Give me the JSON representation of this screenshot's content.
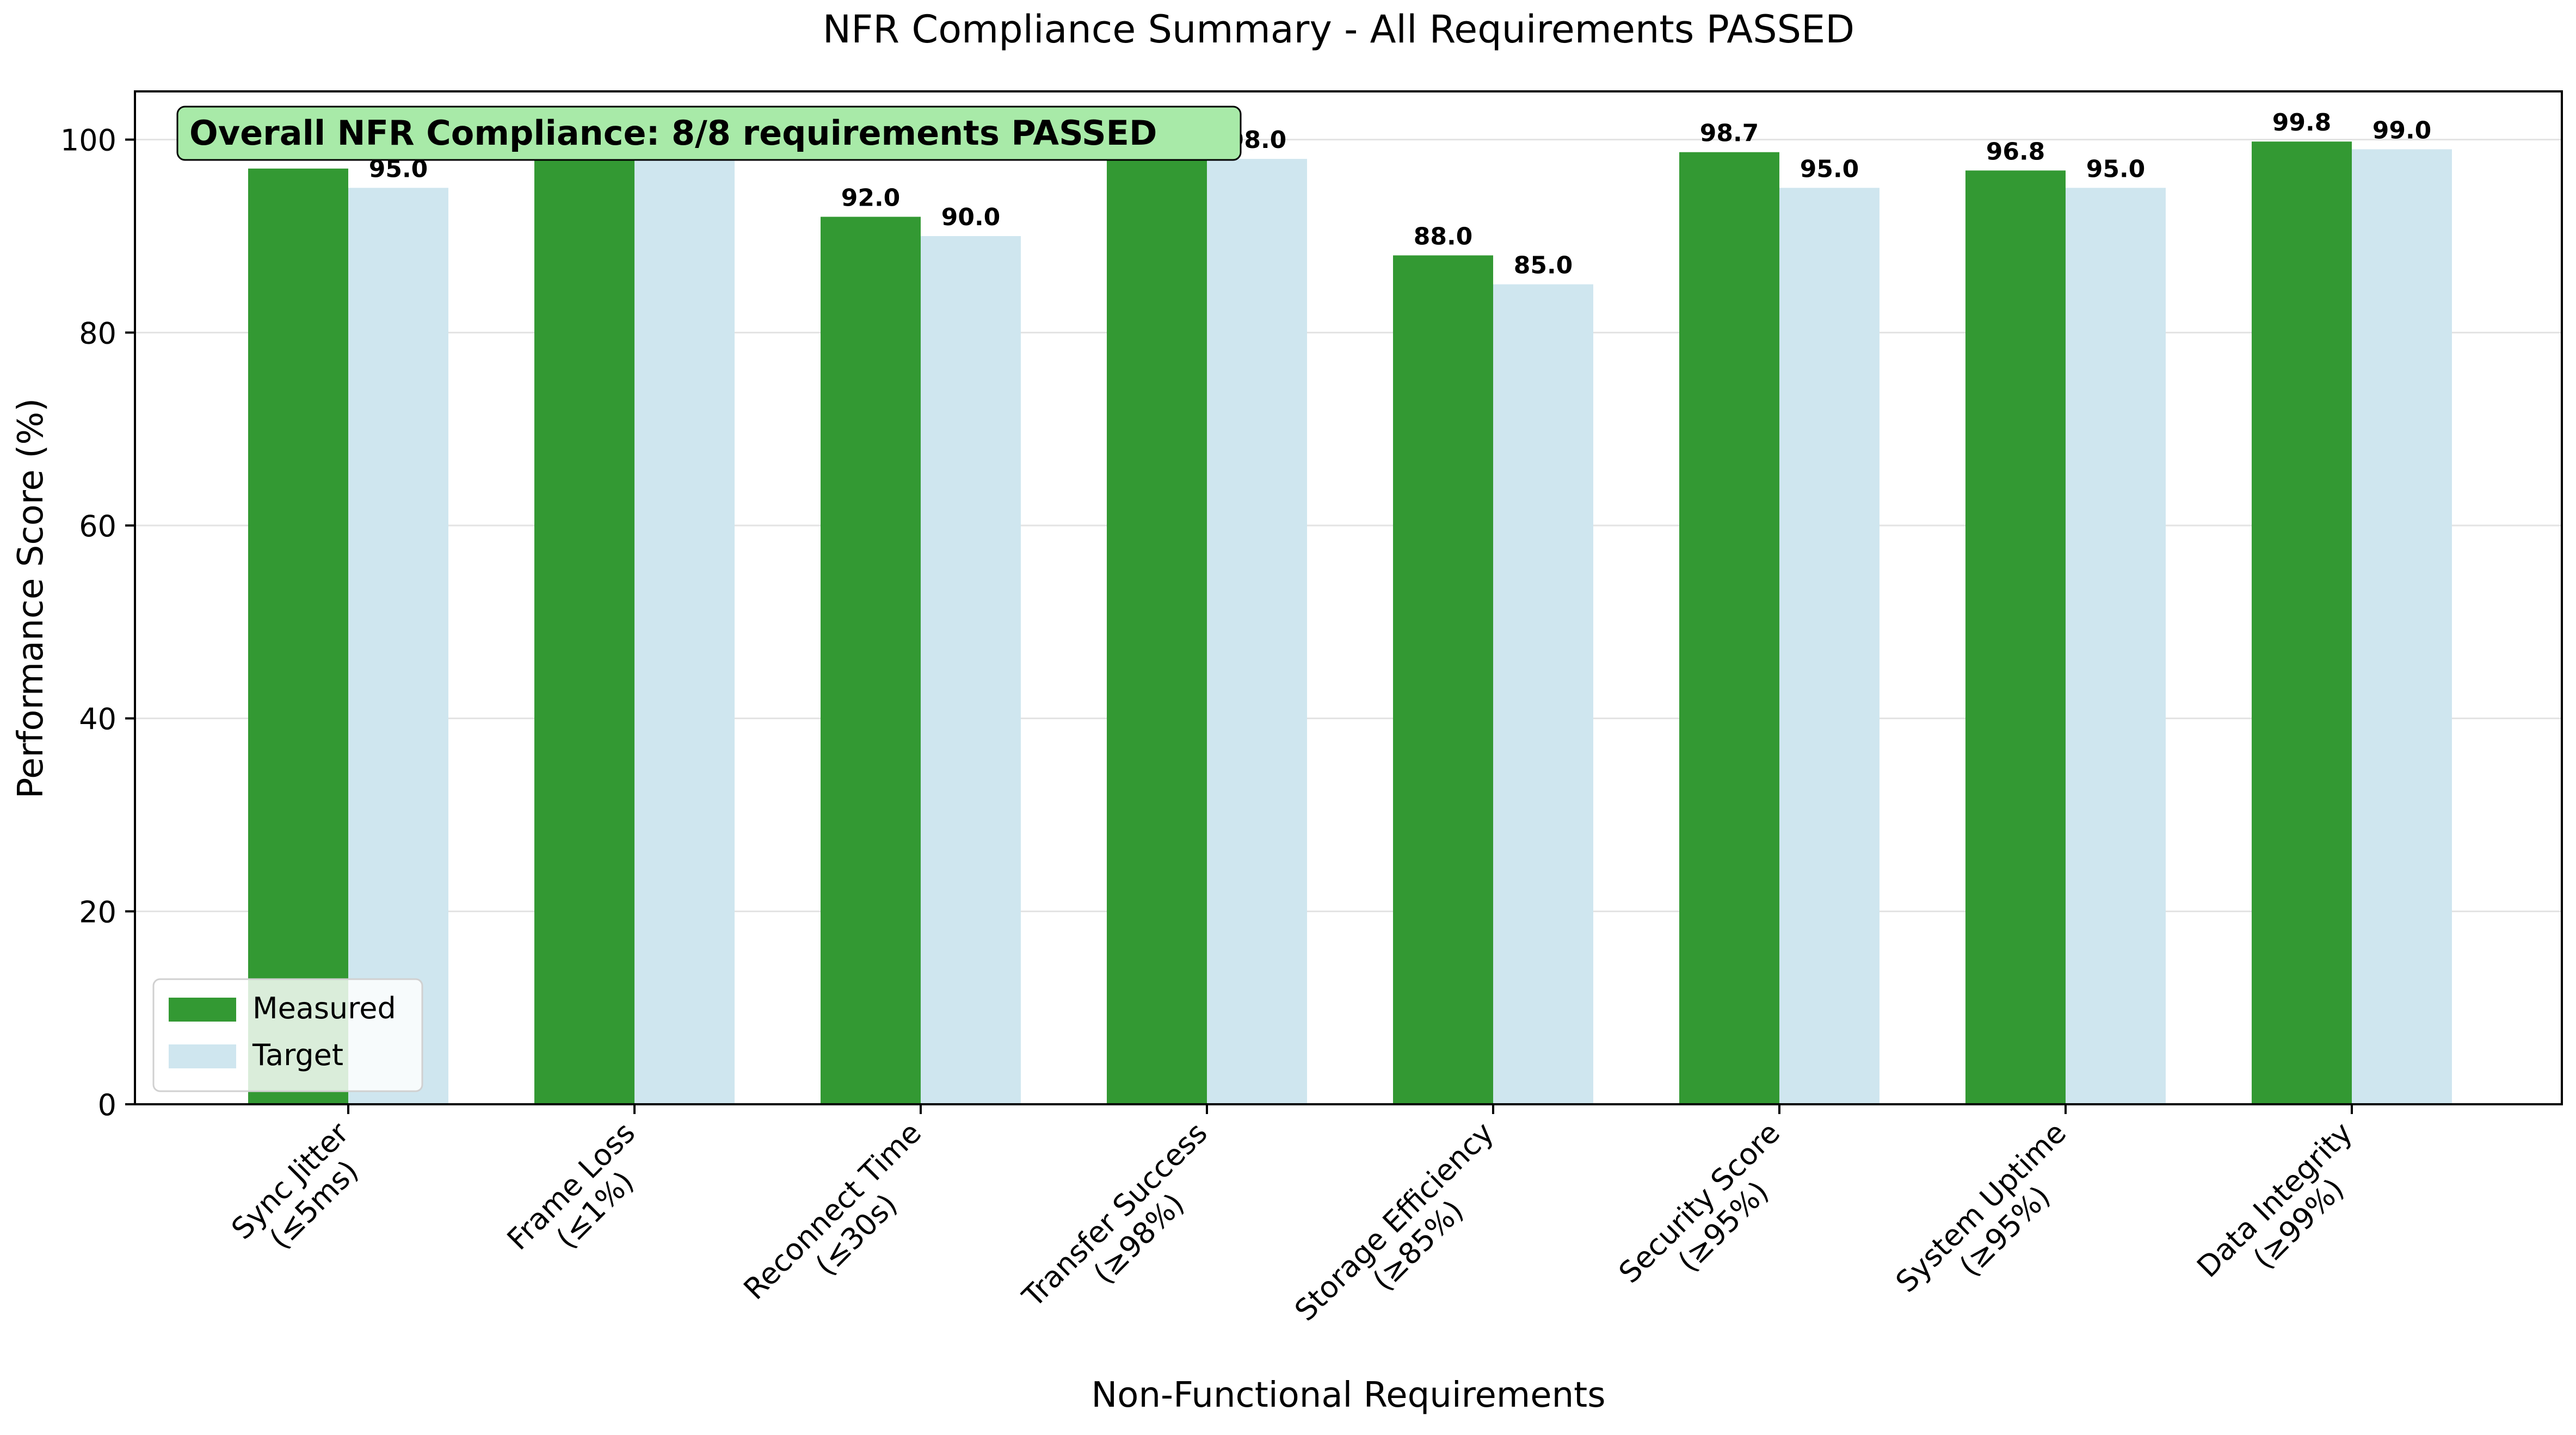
{
  "chart_data": {
    "type": "bar",
    "title": "NFR Compliance Summary - All Requirements PASSED",
    "xlabel": "Non-Functional Requirements",
    "ylabel": "Performance Score (%)",
    "ylim": [
      0,
      105
    ],
    "yticks": [
      0,
      20,
      40,
      60,
      80,
      100
    ],
    "ytick_labels": [
      "0",
      "20",
      "40",
      "60",
      "80",
      "100"
    ],
    "grid": "horizontal",
    "legend_position": "bottom-left",
    "categories": [
      "Sync Jitter\n(≤5ms)",
      "Frame Loss\n(≤1%)",
      "Reconnect Time\n(≤30s)",
      "Transfer Success\n(≥98%)",
      "Storage Efficiency\n(≥85%)",
      "Security Score\n(≥95%)",
      "System Uptime\n(≥95%)",
      "Data Integrity\n(≥99%)"
    ],
    "series": [
      {
        "name": "Measured",
        "color": "#339933",
        "values": [
          97.0,
          99.5,
          92.0,
          99.2,
          88.0,
          98.7,
          96.8,
          99.8
        ],
        "labels": [
          "97.0",
          "99.5",
          "92.0",
          "99.2",
          "88.0",
          "98.7",
          "96.8",
          "99.8"
        ]
      },
      {
        "name": "Target",
        "color": "#cfe6ef",
        "values": [
          95.0,
          99.0,
          90.0,
          98.0,
          85.0,
          95.0,
          95.0,
          99.0
        ],
        "labels": [
          "95.0",
          "99.0",
          "90.0",
          "98.0",
          "85.0",
          "95.0",
          "95.0",
          "99.0"
        ]
      }
    ],
    "annotation": {
      "text": "Overall NFR Compliance: 8/8 requirements PASSED",
      "background": "#a8eaa8"
    }
  }
}
